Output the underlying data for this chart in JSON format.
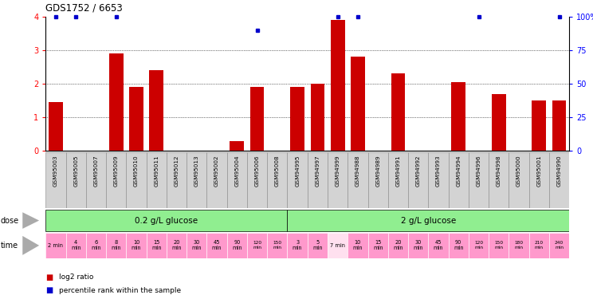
{
  "title": "GDS1752 / 6653",
  "samples": [
    "GSM95003",
    "GSM95005",
    "GSM95007",
    "GSM95009",
    "GSM95010",
    "GSM95011",
    "GSM95012",
    "GSM95013",
    "GSM95002",
    "GSM95004",
    "GSM95006",
    "GSM95008",
    "GSM94995",
    "GSM94997",
    "GSM94999",
    "GSM94988",
    "GSM94989",
    "GSM94991",
    "GSM94992",
    "GSM94993",
    "GSM94994",
    "GSM94996",
    "GSM94998",
    "GSM95000",
    "GSM95001",
    "GSM94990"
  ],
  "log2_ratio": [
    1.45,
    0.0,
    0.0,
    2.9,
    1.9,
    2.4,
    0.0,
    0.0,
    0.0,
    0.3,
    1.9,
    0.0,
    1.9,
    2.0,
    3.9,
    2.8,
    0.0,
    2.3,
    0.0,
    0.0,
    2.05,
    0.0,
    1.7,
    0.0,
    1.5,
    1.5
  ],
  "percentile_values": [
    4.0,
    4.0,
    0,
    4.0,
    0,
    0,
    0,
    0,
    0,
    0,
    3.6,
    0,
    0,
    0,
    4.0,
    4.0,
    0,
    0,
    0,
    0,
    0,
    4.0,
    0,
    0,
    0,
    4.0
  ],
  "bar_color": "#cc0000",
  "dot_color": "#0000cc",
  "bg_color": "#ffffff"
}
